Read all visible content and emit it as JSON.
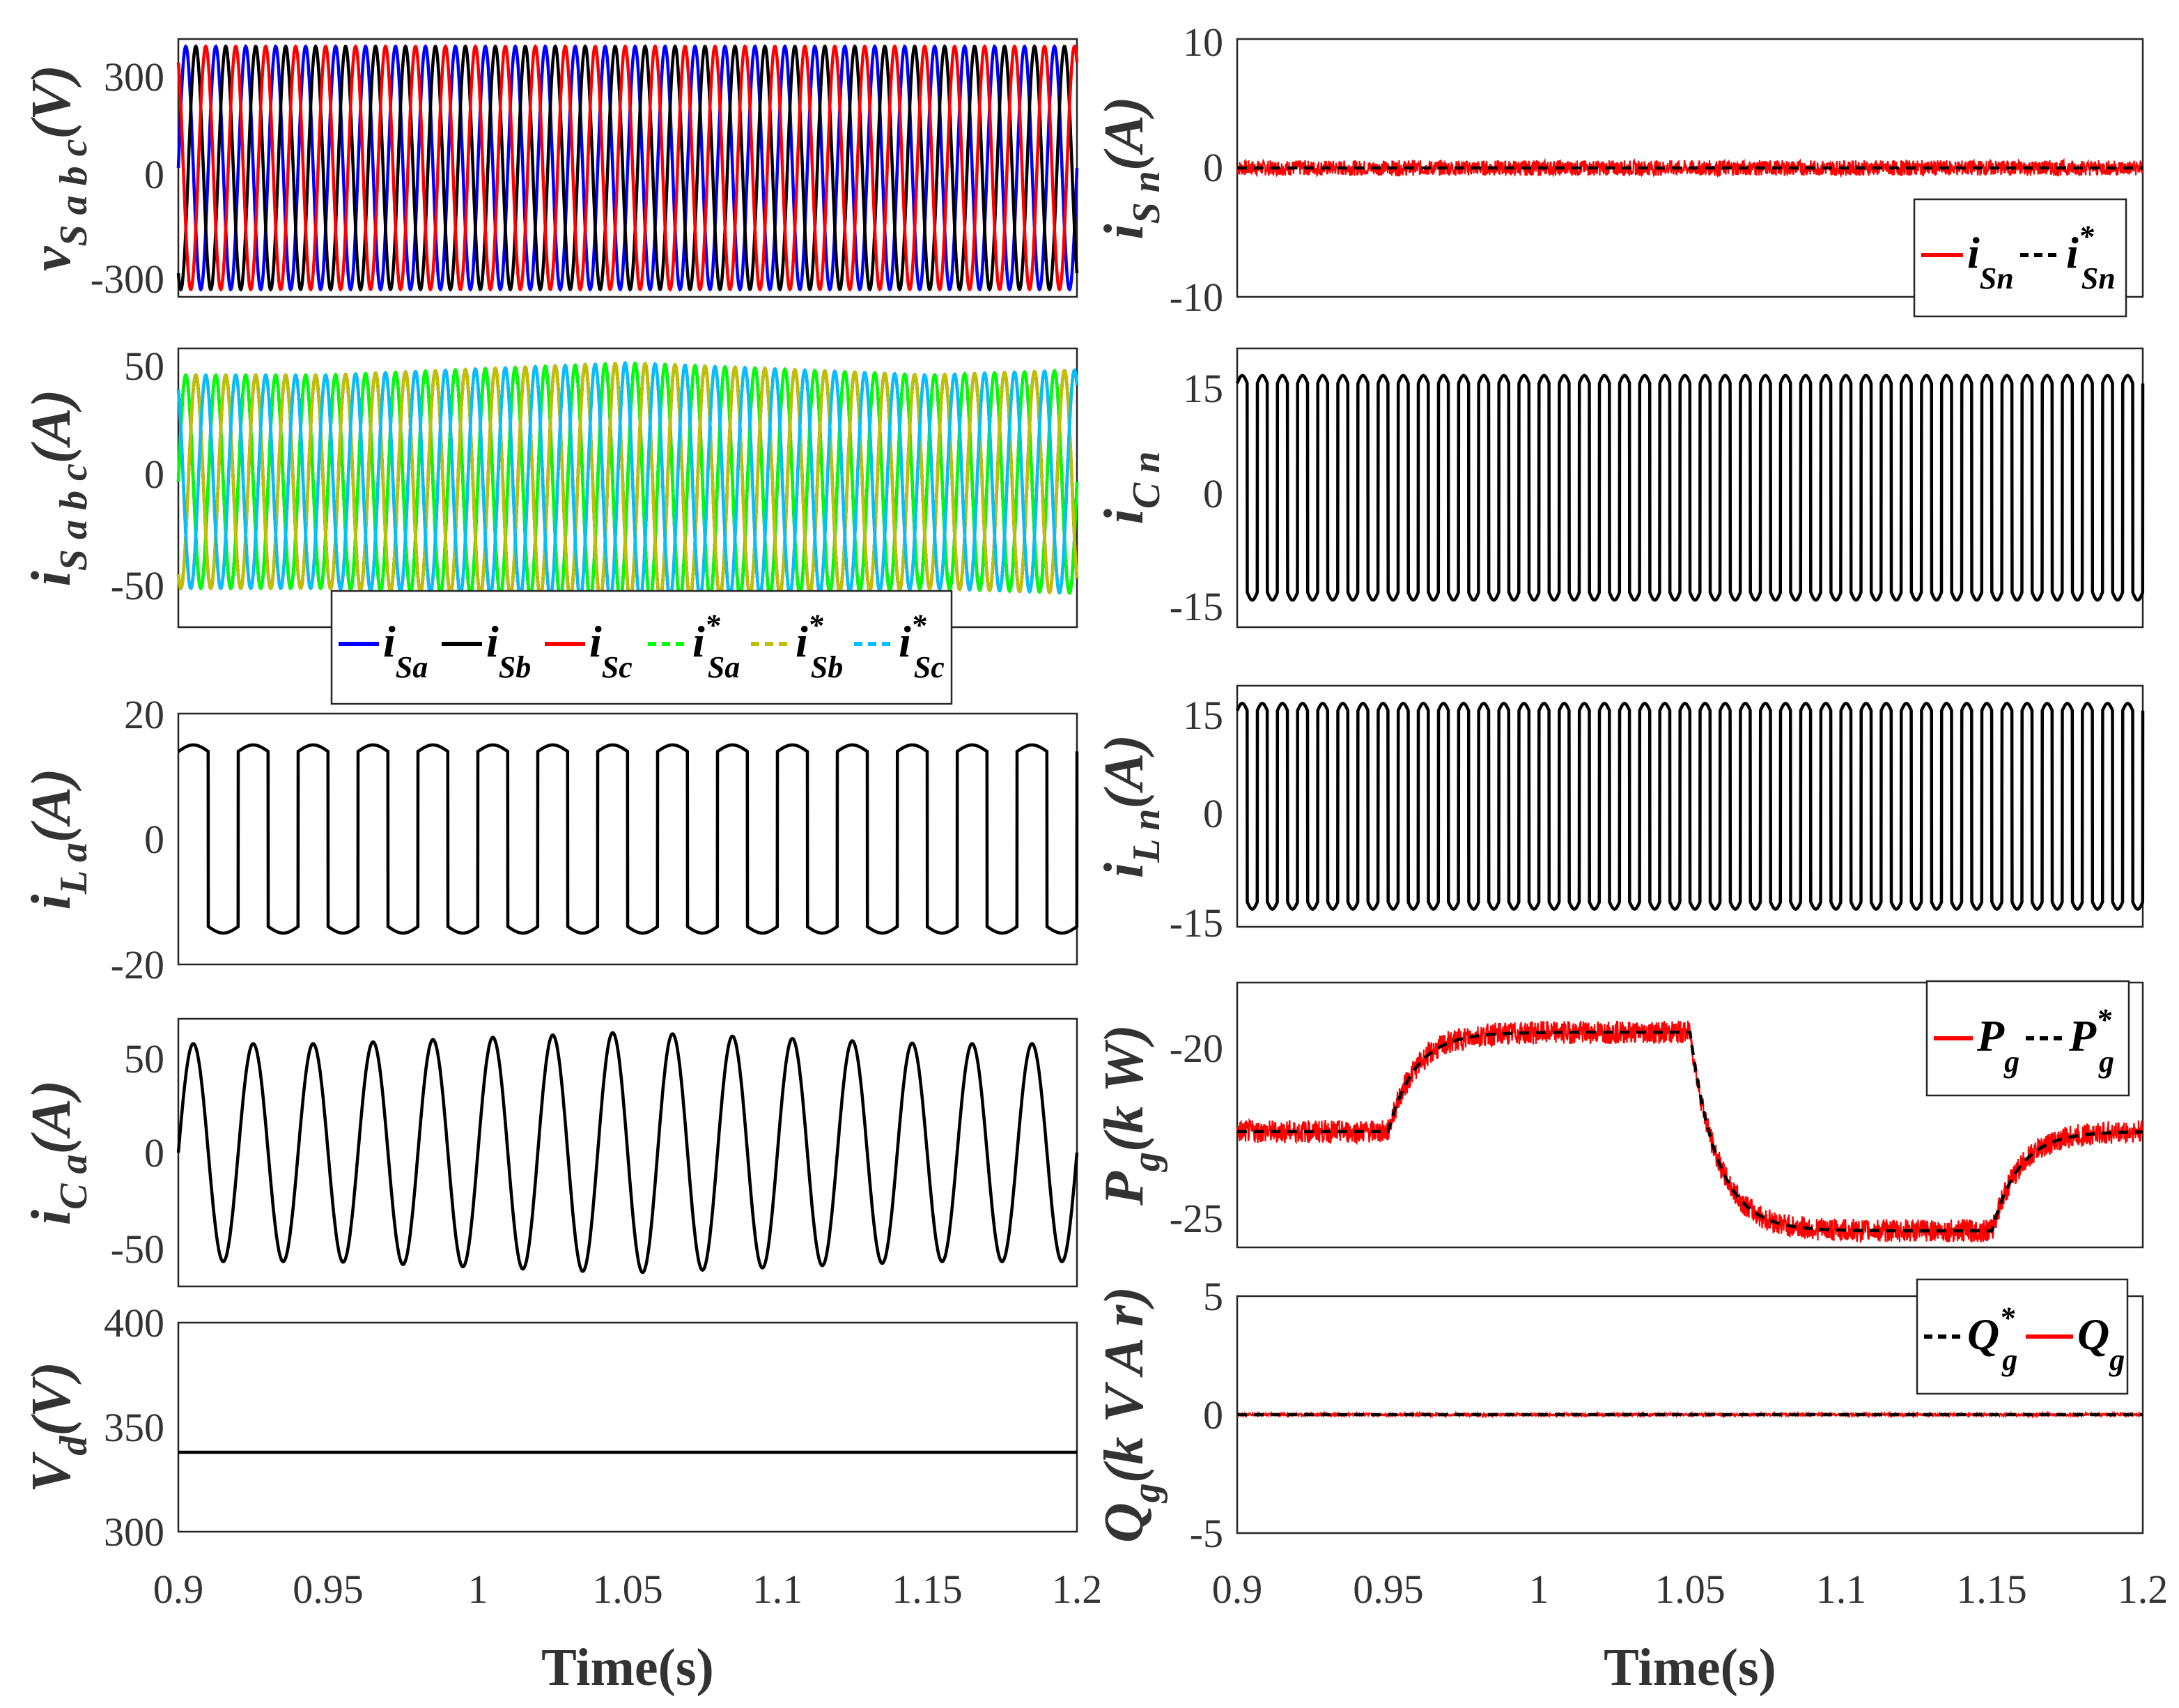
{
  "colors": {
    "red": "#ff0000",
    "black": "#000000",
    "blue": "#0000ff",
    "green": "#00ff00",
    "olive": "#c0c000",
    "cyan": "#00c0ff"
  },
  "xlabel": "Time(s)",
  "chart_data": [
    {
      "id": "vs",
      "type": "line",
      "ylabel": "v_Sabc(V)",
      "ylim": [
        -350,
        350
      ],
      "yticks": [
        "300",
        "0",
        "-300"
      ],
      "xlim": [
        0.9,
        1.2
      ],
      "series": [
        {
          "name": "v_Sa",
          "kind": "sine",
          "amp": 330,
          "freq": 100,
          "phase": 0,
          "color": "blue"
        },
        {
          "name": "v_Sb",
          "kind": "sine",
          "amp": 330,
          "freq": 100,
          "phase": -2.094,
          "color": "black"
        },
        {
          "name": "v_Sc",
          "kind": "sine",
          "amp": 330,
          "freq": 100,
          "phase": 2.094,
          "color": "red"
        }
      ]
    },
    {
      "id": "is",
      "type": "line",
      "ylabel": "i_Sabc(A)",
      "ylim": [
        -60,
        55
      ],
      "yticks": [
        "50",
        "0",
        "-50"
      ],
      "xlim": [
        0.9,
        1.2
      ],
      "amplitude_envelope": {
        "t": [
          0.9,
          0.95,
          1.05,
          1.15,
          1.2
        ],
        "amp": [
          44,
          44,
          49,
          44,
          46
        ]
      },
      "series": [
        {
          "name": "i_Sa",
          "color": "blue",
          "phase": 0
        },
        {
          "name": "i_Sb",
          "color": "black",
          "phase": -2.094
        },
        {
          "name": "i_Sc",
          "color": "red",
          "phase": 2.094
        },
        {
          "name": "i*_Sa",
          "color": "green",
          "phase": 0
        },
        {
          "name": "i*_Sb",
          "color": "olive",
          "phase": -2.094
        },
        {
          "name": "i*_Sc",
          "color": "cyan",
          "phase": 2.094
        }
      ],
      "legend": [
        {
          "sym": "i",
          "sub": "Sa",
          "star": ""
        },
        {
          "sym": "i",
          "sub": "Sb",
          "star": ""
        },
        {
          "sym": "i",
          "sub": "Sc",
          "star": ""
        },
        {
          "sym": "i",
          "sub": "Sa",
          "star": "*"
        },
        {
          "sym": "i",
          "sub": "Sb",
          "star": "*"
        },
        {
          "sym": "i",
          "sub": "Sc",
          "star": "*"
        }
      ]
    },
    {
      "id": "iLa",
      "type": "line",
      "ylabel": "i_La(A)",
      "ylim": [
        -20,
        20
      ],
      "yticks": [
        "20",
        "0",
        "-20"
      ],
      "xlim": [
        0.9,
        1.2
      ],
      "series": [
        {
          "name": "i_La",
          "kind": "square",
          "amp": 15,
          "freq": 50,
          "color": "black"
        }
      ]
    },
    {
      "id": "iCa",
      "type": "line",
      "ylabel": "i_Ca(A)",
      "ylim": [
        -70,
        70
      ],
      "yticks": [
        "50",
        "0",
        "-50"
      ],
      "xlim": [
        0.9,
        1.2
      ],
      "series": [
        {
          "name": "i_Ca",
          "kind": "sine",
          "freq": 50,
          "color": "black",
          "amplitude_envelope": {
            "t": [
              0.9,
              0.95,
              1.05,
              1.15,
              1.2
            ],
            "amp": [
              57,
              57,
              63,
              57,
              57
            ]
          }
        }
      ]
    },
    {
      "id": "vd",
      "type": "line",
      "ylabel": "V_d(V)",
      "ylim": [
        300,
        400
      ],
      "yticks": [
        "400",
        "350",
        "300"
      ],
      "xlim": [
        0.9,
        1.2
      ],
      "xticks": [
        "0.9",
        "0.95",
        "1",
        "1.05",
        "1.1",
        "1.15",
        "1.2"
      ],
      "series": [
        {
          "name": "V_d",
          "kind": "const",
          "value": 338,
          "color": "black"
        }
      ]
    },
    {
      "id": "iSn",
      "type": "line",
      "ylabel": "i_Sn(A)",
      "ylim": [
        -10,
        10
      ],
      "yticks": [
        "10",
        "0",
        "-10"
      ],
      "xlim": [
        0.9,
        1.2
      ],
      "series": [
        {
          "name": "i_Sn",
          "kind": "noise",
          "value": 0,
          "noise": 0.6,
          "color": "red"
        },
        {
          "name": "i*_Sn",
          "kind": "const",
          "value": 0,
          "color": "black",
          "dash": true
        }
      ],
      "legend": [
        {
          "sym": "i",
          "sub": "Sn",
          "star": ""
        },
        {
          "sym": "i",
          "sub": "Sn",
          "star": "*"
        }
      ]
    },
    {
      "id": "iCn",
      "type": "line",
      "ylabel": "i_Cn",
      "ylim": [
        -18,
        18
      ],
      "yticks": [
        "15",
        "0",
        "-15"
      ],
      "xlim": [
        0.9,
        1.2
      ],
      "series": [
        {
          "name": "i_Cn",
          "kind": "square",
          "amp": 14.5,
          "freq": 150,
          "color": "black"
        }
      ]
    },
    {
      "id": "iLn",
      "type": "line",
      "ylabel": "i_Ln(A)",
      "ylim": [
        -17,
        17
      ],
      "yticks": [
        "15",
        "0",
        "-15"
      ],
      "xlim": [
        0.9,
        1.2
      ],
      "series": [
        {
          "name": "i_Ln",
          "kind": "square",
          "amp": 14.5,
          "freq": 150,
          "color": "black"
        }
      ]
    },
    {
      "id": "Pg",
      "type": "line",
      "ylabel": "P_g(kW)",
      "ylim": [
        -26,
        -18
      ],
      "yticks": [
        "-20",
        "-25"
      ],
      "xlim": [
        0.9,
        1.2
      ],
      "series": [
        {
          "name": "P_g",
          "kind": "steps",
          "color": "red",
          "noise": 0.35,
          "levels": [
            {
              "t": 0.95,
              "v": -19.5
            },
            {
              "t": 1.05,
              "v": -25.5
            },
            {
              "t": 1.15,
              "v": -22.5
            }
          ],
          "start": -22.5
        },
        {
          "name": "P*_g",
          "kind": "steps",
          "color": "black",
          "dash": true,
          "levels": [
            {
              "t": 0.95,
              "v": -19.5
            },
            {
              "t": 1.05,
              "v": -25.5
            },
            {
              "t": 1.15,
              "v": -22.5
            }
          ],
          "start": -22.5
        }
      ],
      "legend": [
        {
          "sym": "P",
          "sub": "g",
          "star": ""
        },
        {
          "sym": "P",
          "sub": "g",
          "star": "*"
        }
      ]
    },
    {
      "id": "Qg",
      "type": "line",
      "ylabel": "Q_g(kVAr)",
      "ylim": [
        -5,
        5
      ],
      "yticks": [
        "5",
        "0",
        "-5"
      ],
      "xlim": [
        0.9,
        1.2
      ],
      "xticks": [
        "0.9",
        "0.95",
        "1",
        "1.05",
        "1.1",
        "1.15",
        "1.2"
      ],
      "series": [
        {
          "name": "Q*_g",
          "kind": "const",
          "value": 0,
          "color": "black",
          "dash": true
        },
        {
          "name": "Q_g",
          "kind": "noise",
          "value": 0,
          "noise": 0.05,
          "color": "red"
        }
      ],
      "legend": [
        {
          "sym": "Q",
          "sub": "g",
          "star": "*"
        },
        {
          "sym": "Q",
          "sub": "g",
          "star": ""
        }
      ]
    }
  ]
}
